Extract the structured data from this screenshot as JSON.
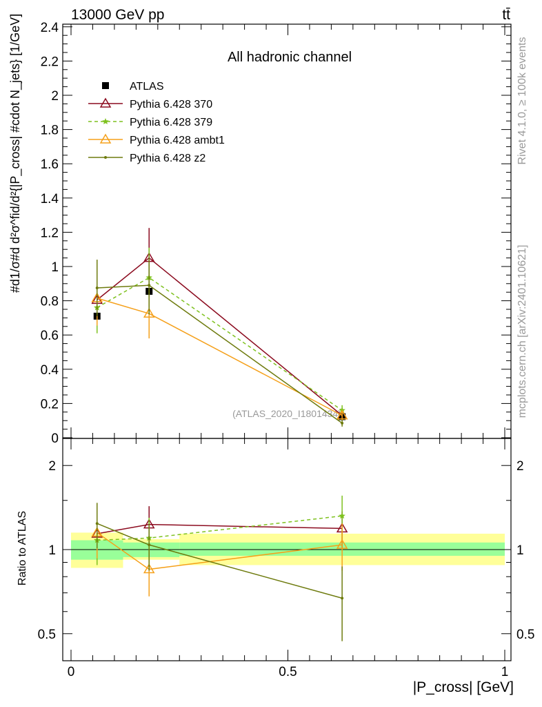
{
  "header": {
    "energy": "13000 GeV pp",
    "process": "tt̄",
    "channel": "All hadronic channel",
    "rivet": "Rivet 4.1.0, ≥ 100k events",
    "source": "mcplots.cern.ch [arXiv:2401.10621]",
    "analysis": "(ATLAS_2020_I1801434)"
  },
  "axes": {
    "ylabel_main": "#d\\frac{1}{\\sigma}#d \\frac{d^2\\sigma^{fid}}{d^2{|P_{cross}| #cdot N_{jets}}} [1/GeV]",
    "ylabel_main_display": "#d1/σ#d d²σ^fid/d²{|P_cross| #cdot N_jets} [1/GeV]",
    "ylabel_ratio": "Ratio to ATLAS",
    "xlabel": "|P_cross| [GeV]",
    "main_yticks": [
      "0",
      "0.2",
      "0.4",
      "0.6",
      "0.8",
      "1",
      "1.2",
      "1.4",
      "1.6",
      "1.8",
      "2",
      "2.2",
      "2.4"
    ],
    "ratio_yticks": [
      "0.5",
      "1",
      "2"
    ],
    "xticks": [
      "0",
      "0.5",
      "1"
    ]
  },
  "chart_data": [
    {
      "type": "line",
      "panel": "main",
      "xlim": [
        -0.02,
        1.02
      ],
      "ylim": [
        0,
        2.42
      ],
      "x": [
        0.06,
        0.18,
        0.625
      ],
      "bins": [
        [
          0,
          0.12
        ],
        [
          0.12,
          0.25
        ],
        [
          0.25,
          1.0
        ]
      ],
      "series": [
        {
          "name": "ATLAS",
          "color": "#000000",
          "marker": "square",
          "values": [
            0.71,
            0.855,
            0.123
          ],
          "err": [
            0,
            0,
            0
          ]
        },
        {
          "name": "Pythia 6.428 370",
          "color": "#8b0a1e",
          "marker": "triangle",
          "dash": "",
          "values": [
            0.805,
            1.05,
            0.13
          ],
          "err": [
            0.16,
            0.175,
            0.025
          ]
        },
        {
          "name": "Pythia 6.428 379",
          "color": "#7ec11e",
          "marker": "star",
          "dash": "5,4",
          "values": [
            0.76,
            0.935,
            0.16
          ],
          "err": [
            0.15,
            0.175,
            0.03
          ]
        },
        {
          "name": "Pythia 6.428 ambt1",
          "color": "#f5a01a",
          "marker": "triangle",
          "dash": "",
          "values": [
            0.815,
            0.725,
            0.13
          ],
          "err": [
            0.16,
            0.145,
            0.025
          ]
        },
        {
          "name": "Pythia 6.428 z2",
          "color": "#6e7b0e",
          "marker": "dot",
          "dash": "",
          "values": [
            0.875,
            0.89,
            0.085
          ],
          "err": [
            0.165,
            0.17,
            0.02
          ]
        }
      ]
    },
    {
      "type": "line",
      "panel": "ratio",
      "scale": "log",
      "ylim": [
        0.4,
        2.5
      ],
      "x": [
        0.06,
        0.18,
        0.625
      ],
      "bands": {
        "green": [
          [
            0.92,
            1.08
          ],
          [
            0.94,
            1.06
          ],
          [
            0.95,
            1.06
          ]
        ],
        "yellow": [
          [
            0.86,
            1.15
          ],
          [
            0.92,
            1.09
          ],
          [
            0.88,
            1.14
          ]
        ]
      },
      "series": [
        {
          "name": "Pythia 6.428 370",
          "values": [
            1.14,
            1.23,
            1.19
          ],
          "err": [
            0.2,
            0.2,
            0.18
          ]
        },
        {
          "name": "Pythia 6.428 379",
          "values": [
            1.08,
            1.1,
            1.32
          ],
          "err": [
            0.2,
            0.2,
            0.24
          ]
        },
        {
          "name": "Pythia 6.428 ambt1",
          "values": [
            1.15,
            0.85,
            1.04
          ],
          "err": [
            0.22,
            0.17,
            0.2
          ]
        },
        {
          "name": "Pythia 6.428 z2",
          "values": [
            1.24,
            1.04,
            0.67
          ],
          "err": [
            0.23,
            0.2,
            0.2
          ]
        }
      ]
    }
  ]
}
